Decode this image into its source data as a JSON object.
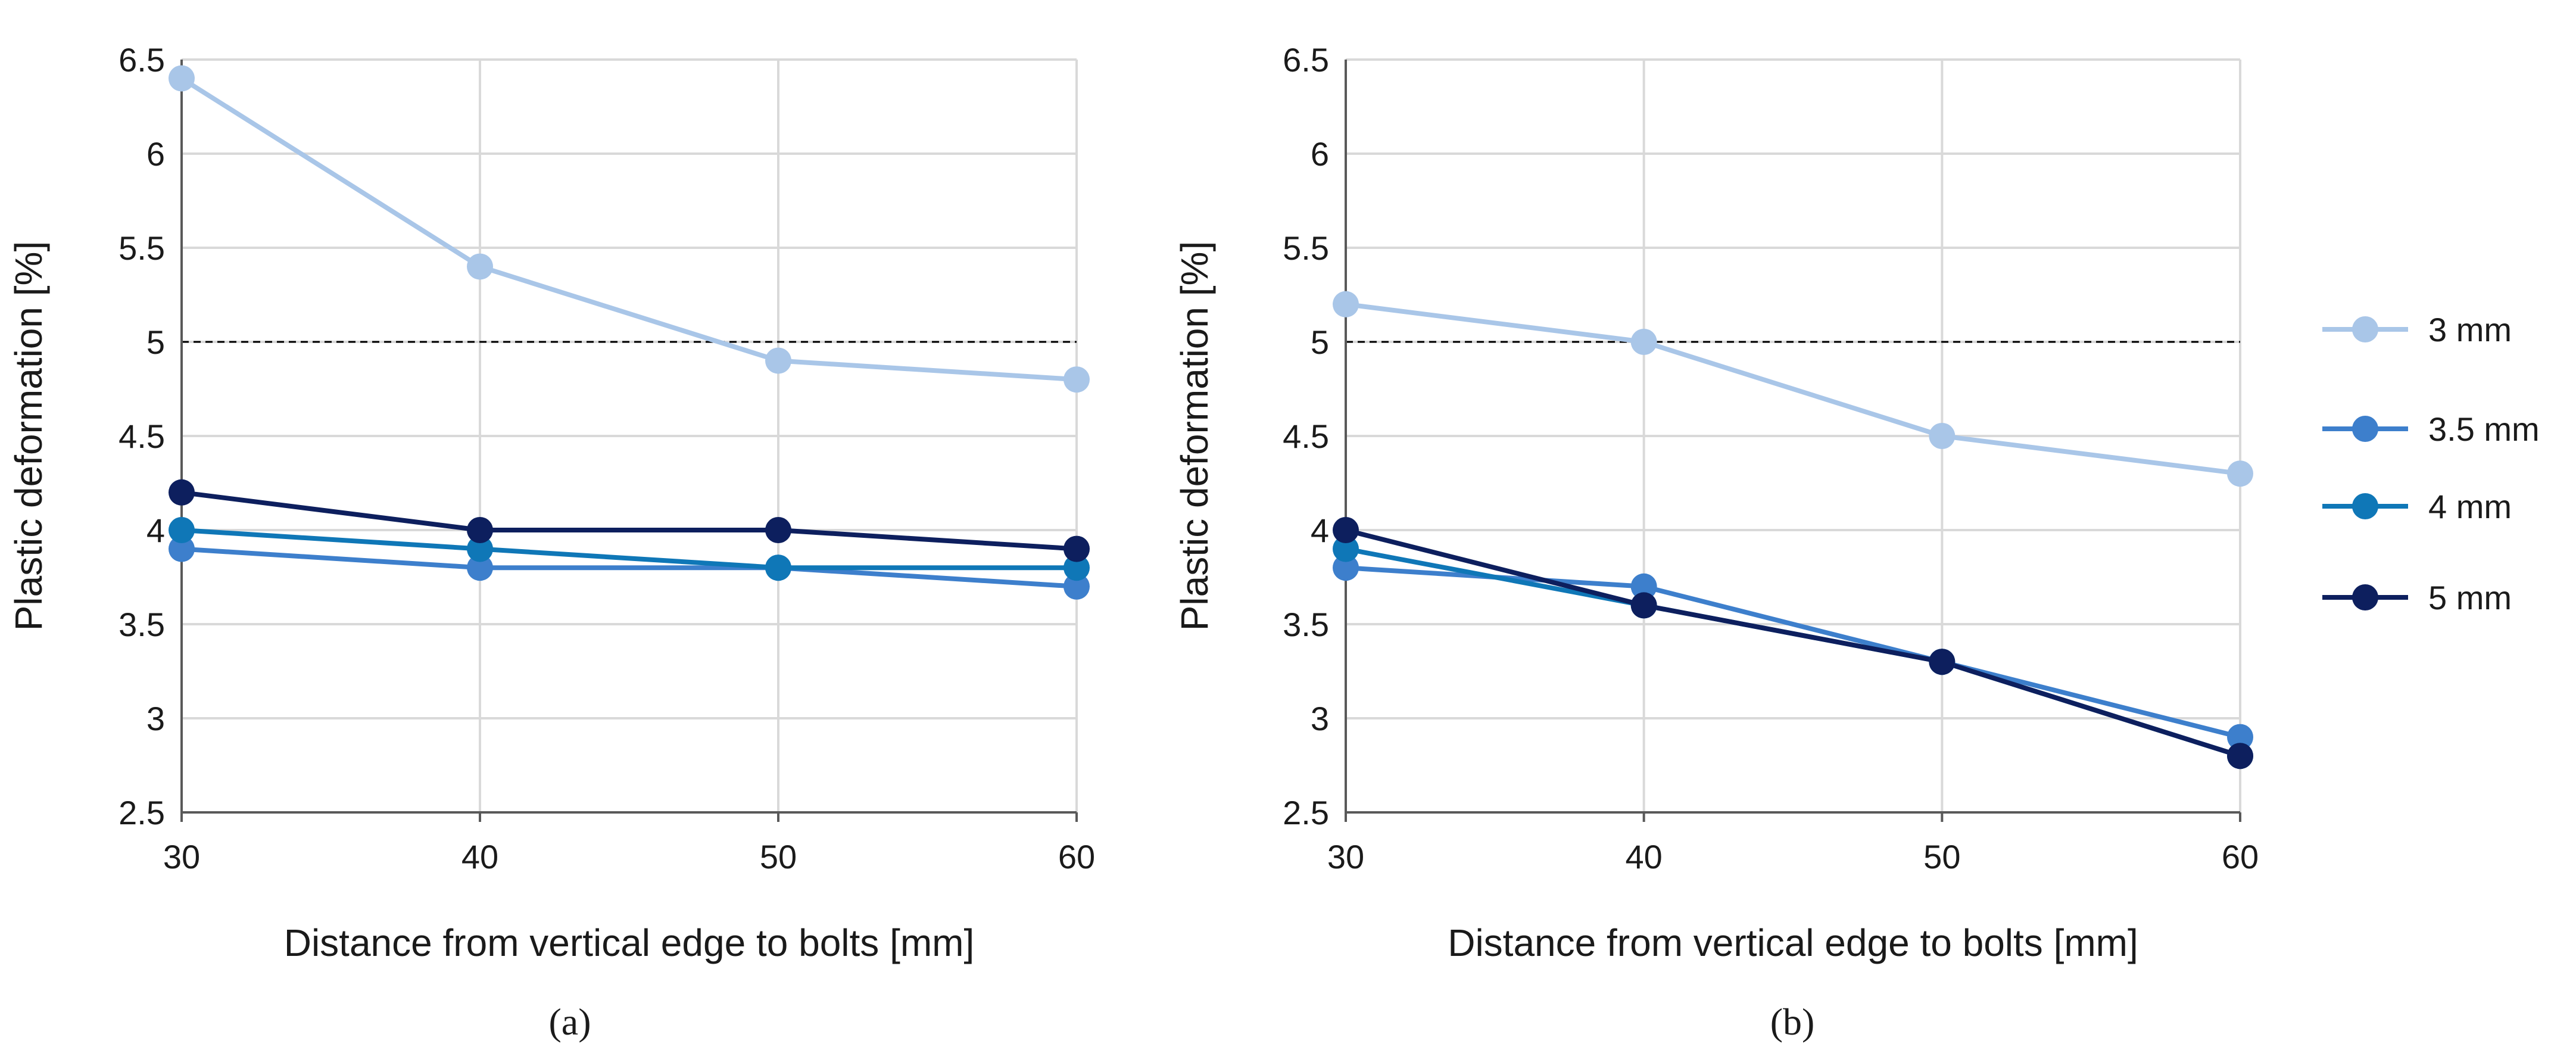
{
  "colors": {
    "grid": "#d9d9d9",
    "axis": "#595959",
    "threshold": "#000000",
    "s3": "#a9c6e8",
    "s35": "#3d7fcc",
    "s4": "#0f77b7",
    "s5": "#0d1f5e"
  },
  "legend": {
    "items": [
      {
        "name": "3 mm",
        "color": "#a9c6e8"
      },
      {
        "name": "3.5 mm",
        "color": "#3d7fcc"
      },
      {
        "name": "4 mm",
        "color": "#0f77b7"
      },
      {
        "name": "5 mm",
        "color": "#0d1f5e"
      }
    ]
  },
  "chart_data": [
    {
      "type": "line",
      "panel_label": "(a)",
      "xlabel": "Distance from vertical edge to bolts [mm]",
      "ylabel": "Plastic deformation [%]",
      "x": [
        30,
        40,
        50,
        60
      ],
      "x_ticks": [
        "30",
        "40",
        "50",
        "60"
      ],
      "xlim": [
        30,
        60
      ],
      "ylim": [
        2.5,
        6.5
      ],
      "y_ticks": [
        "2.5",
        "3",
        "3.5",
        "4",
        "4.5",
        "5",
        "5.5",
        "6",
        "6.5"
      ],
      "grid": true,
      "reference_line": {
        "y": 5,
        "style": "dashed"
      },
      "series": [
        {
          "name": "3 mm",
          "color": "#a9c6e8",
          "values": [
            6.4,
            5.4,
            4.9,
            4.8
          ]
        },
        {
          "name": "3.5 mm",
          "color": "#3d7fcc",
          "values": [
            3.9,
            3.8,
            3.8,
            3.7
          ]
        },
        {
          "name": "4 mm",
          "color": "#0f77b7",
          "values": [
            4.0,
            3.9,
            3.8,
            3.8
          ]
        },
        {
          "name": "5 mm",
          "color": "#0d1f5e",
          "values": [
            4.2,
            4.0,
            4.0,
            3.9
          ]
        }
      ]
    },
    {
      "type": "line",
      "panel_label": "(b)",
      "xlabel": "Distance from vertical edge to bolts [mm]",
      "ylabel": "Plastic deformation [%]",
      "x": [
        30,
        40,
        50,
        60
      ],
      "x_ticks": [
        "30",
        "40",
        "50",
        "60"
      ],
      "xlim": [
        30,
        60
      ],
      "ylim": [
        2.5,
        6.5
      ],
      "y_ticks": [
        "2.5",
        "3",
        "3.5",
        "4",
        "4.5",
        "5",
        "5.5",
        "6",
        "6.5"
      ],
      "grid": true,
      "reference_line": {
        "y": 5,
        "style": "dashed"
      },
      "series": [
        {
          "name": "3 mm",
          "color": "#a9c6e8",
          "values": [
            5.2,
            5.0,
            4.5,
            4.3
          ]
        },
        {
          "name": "3.5 mm",
          "color": "#3d7fcc",
          "values": [
            3.8,
            3.7,
            3.3,
            2.9
          ]
        },
        {
          "name": "4 mm",
          "color": "#0f77b7",
          "values": [
            3.9,
            3.6,
            3.3,
            2.8
          ]
        },
        {
          "name": "5 mm",
          "color": "#0d1f5e",
          "values": [
            4.0,
            3.6,
            3.3,
            2.8
          ]
        }
      ]
    }
  ]
}
